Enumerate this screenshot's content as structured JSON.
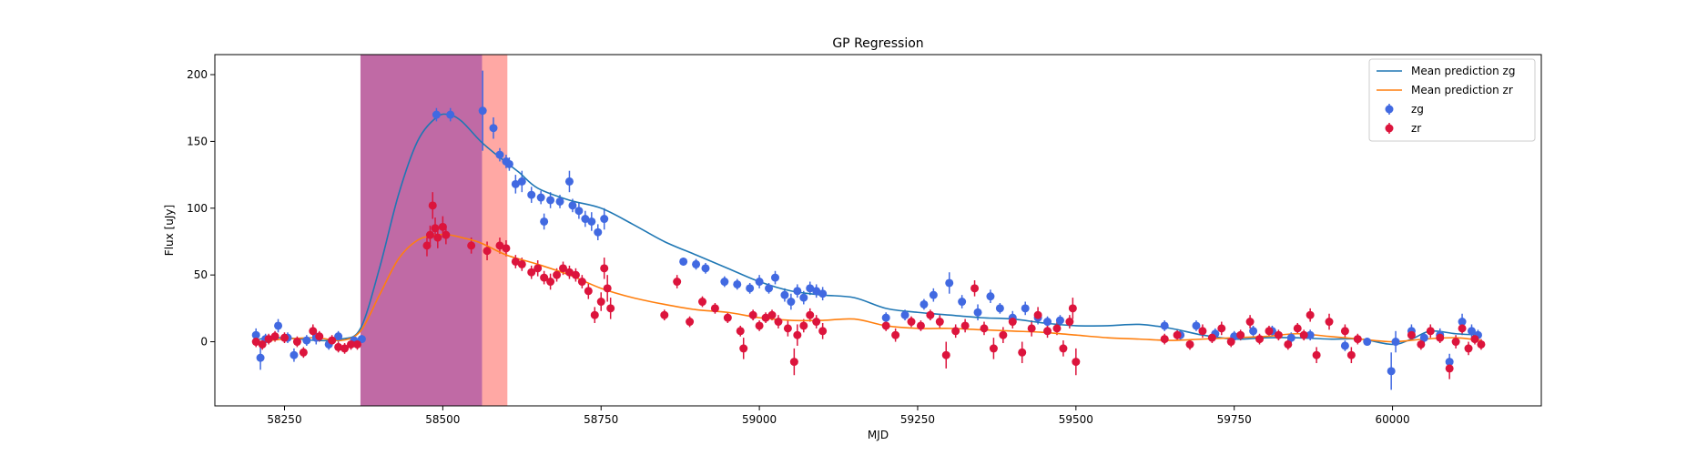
{
  "chart_data": {
    "type": "scatter",
    "title": "GP Regression",
    "xlabel": "MJD",
    "ylabel": "Flux [uJy]",
    "xlim": [
      58140,
      60235
    ],
    "ylim": [
      -48,
      215
    ],
    "xticks": [
      58250,
      58500,
      58750,
      59000,
      59250,
      59500,
      59750,
      60000
    ],
    "yticks": [
      0,
      50,
      100,
      150,
      200
    ],
    "grid": false,
    "legend_position": "top-right",
    "legend": [
      "Mean prediction zg",
      "Mean prediction zr",
      "zg",
      "zr"
    ],
    "colors": {
      "mean_zg": "#1f77b4",
      "mean_zr": "#ff7f0e",
      "zg": "#4169e1",
      "zr": "#dc143c",
      "span_purple": "#c06aa5",
      "span_salmon": "#ffa8a4"
    },
    "shaded_regions": [
      {
        "x_start": 58370,
        "x_end": 58562,
        "color": "#c06aa5"
      },
      {
        "x_start": 58562,
        "x_end": 58602,
        "color": "#ffa8a4"
      }
    ],
    "series": [
      {
        "name": "Mean prediction zg",
        "kind": "line",
        "x": [
          58210,
          58250,
          58300,
          58340,
          58370,
          58400,
          58430,
          58460,
          58490,
          58510,
          58530,
          58560,
          58590,
          58620,
          58650,
          58700,
          58750,
          58800,
          58850,
          58900,
          58950,
          59000,
          59050,
          59100,
          59150,
          59200,
          59250,
          59300,
          59350,
          59400,
          59450,
          59500,
          59550,
          59600,
          59650,
          59700,
          59750,
          59800,
          59850,
          59900,
          59950,
          60000,
          60030,
          60060,
          60100,
          60140
        ],
        "y": [
          2,
          3,
          1,
          2,
          10,
          55,
          110,
          150,
          168,
          170,
          165,
          150,
          138,
          127,
          115,
          106,
          100,
          88,
          75,
          65,
          55,
          45,
          38,
          35,
          33,
          25,
          22,
          20,
          18,
          17,
          14,
          12,
          12,
          13,
          10,
          5,
          2,
          3,
          3,
          2,
          2,
          -2,
          2,
          8,
          6,
          5
        ]
      },
      {
        "name": "Mean prediction zr",
        "kind": "line",
        "x": [
          58210,
          58250,
          58300,
          58340,
          58370,
          58400,
          58430,
          58460,
          58490,
          58510,
          58530,
          58560,
          58600,
          58650,
          58700,
          58750,
          58800,
          58850,
          58900,
          58950,
          59000,
          59050,
          59100,
          59150,
          59200,
          59250,
          59300,
          59350,
          59400,
          59450,
          59500,
          59550,
          59600,
          59650,
          59700,
          59750,
          59800,
          59850,
          59900,
          59950,
          60000,
          60050,
          60100,
          60140
        ],
        "y": [
          0,
          2,
          3,
          1,
          8,
          35,
          62,
          76,
          80,
          80,
          78,
          74,
          65,
          58,
          50,
          40,
          33,
          28,
          24,
          22,
          18,
          16,
          16,
          17,
          12,
          10,
          10,
          9,
          8,
          7,
          5,
          3,
          2,
          1,
          2,
          3,
          4,
          6,
          4,
          2,
          0,
          2,
          3,
          1
        ]
      },
      {
        "name": "zg",
        "kind": "errorbar",
        "points": [
          [
            58205,
            5,
            5
          ],
          [
            58212,
            -12,
            9
          ],
          [
            58220,
            2,
            4
          ],
          [
            58240,
            12,
            5
          ],
          [
            58255,
            3,
            4
          ],
          [
            58265,
            -10,
            5
          ],
          [
            58285,
            1,
            4
          ],
          [
            58300,
            3,
            5
          ],
          [
            58320,
            -2,
            4
          ],
          [
            58335,
            4,
            4
          ],
          [
            58360,
            1,
            3
          ],
          [
            58372,
            2,
            3
          ],
          [
            58490,
            170,
            5
          ],
          [
            58512,
            170,
            5
          ],
          [
            58563,
            173,
            30
          ],
          [
            58580,
            160,
            8
          ],
          [
            58590,
            140,
            5
          ],
          [
            58600,
            135,
            5
          ],
          [
            58605,
            133,
            5
          ],
          [
            58615,
            118,
            7
          ],
          [
            58625,
            120,
            8
          ],
          [
            58640,
            110,
            6
          ],
          [
            58655,
            108,
            5
          ],
          [
            58670,
            106,
            6
          ],
          [
            58685,
            105,
            5
          ],
          [
            58700,
            120,
            8
          ],
          [
            58705,
            102,
            5
          ],
          [
            58715,
            98,
            6
          ],
          [
            58725,
            92,
            6
          ],
          [
            58735,
            90,
            7
          ],
          [
            58745,
            82,
            6
          ],
          [
            58755,
            92,
            8
          ],
          [
            58660,
            90,
            6
          ],
          [
            58880,
            60,
            3
          ],
          [
            58900,
            58,
            4
          ],
          [
            58915,
            55,
            4
          ],
          [
            58945,
            45,
            4
          ],
          [
            58965,
            43,
            4
          ],
          [
            58985,
            40,
            4
          ],
          [
            59000,
            45,
            5
          ],
          [
            59015,
            40,
            4
          ],
          [
            59025,
            48,
            5
          ],
          [
            59040,
            35,
            5
          ],
          [
            59050,
            30,
            6
          ],
          [
            59060,
            38,
            5
          ],
          [
            59070,
            33,
            5
          ],
          [
            59080,
            40,
            5
          ],
          [
            59090,
            38,
            5
          ],
          [
            59100,
            36,
            5
          ],
          [
            59200,
            18,
            4
          ],
          [
            59230,
            20,
            4
          ],
          [
            59260,
            28,
            4
          ],
          [
            59275,
            35,
            5
          ],
          [
            59300,
            44,
            8
          ],
          [
            59320,
            30,
            5
          ],
          [
            59345,
            22,
            6
          ],
          [
            59365,
            34,
            5
          ],
          [
            59380,
            25,
            4
          ],
          [
            59400,
            18,
            5
          ],
          [
            59420,
            25,
            5
          ],
          [
            59440,
            18,
            5
          ],
          [
            59455,
            15,
            4
          ],
          [
            59475,
            16,
            4
          ],
          [
            59640,
            12,
            4
          ],
          [
            59665,
            5,
            4
          ],
          [
            59690,
            12,
            4
          ],
          [
            59720,
            6,
            4
          ],
          [
            59750,
            4,
            4
          ],
          [
            59780,
            8,
            4
          ],
          [
            59810,
            8,
            4
          ],
          [
            59840,
            3,
            4
          ],
          [
            59870,
            5,
            4
          ],
          [
            59925,
            -3,
            4
          ],
          [
            59960,
            0,
            3
          ],
          [
            59998,
            -22,
            14
          ],
          [
            60005,
            0,
            8
          ],
          [
            60030,
            8,
            5
          ],
          [
            60050,
            3,
            4
          ],
          [
            60075,
            5,
            5
          ],
          [
            60090,
            -15,
            6
          ],
          [
            60110,
            15,
            6
          ],
          [
            60125,
            8,
            5
          ],
          [
            60135,
            5,
            4
          ]
        ]
      },
      {
        "name": "zr",
        "kind": "errorbar",
        "points": [
          [
            58205,
            0,
            4
          ],
          [
            58215,
            -2,
            4
          ],
          [
            58225,
            2,
            4
          ],
          [
            58235,
            4,
            4
          ],
          [
            58250,
            3,
            4
          ],
          [
            58270,
            0,
            4
          ],
          [
            58280,
            -8,
            4
          ],
          [
            58295,
            8,
            5
          ],
          [
            58305,
            4,
            4
          ],
          [
            58325,
            1,
            4
          ],
          [
            58335,
            -4,
            4
          ],
          [
            58345,
            -5,
            4
          ],
          [
            58355,
            -2,
            4
          ],
          [
            58365,
            -2,
            4
          ],
          [
            58475,
            72,
            8
          ],
          [
            58480,
            80,
            7
          ],
          [
            58484,
            102,
            10
          ],
          [
            58488,
            85,
            8
          ],
          [
            58492,
            78,
            8
          ],
          [
            58500,
            86,
            8
          ],
          [
            58505,
            80,
            7
          ],
          [
            58545,
            72,
            6
          ],
          [
            58570,
            68,
            7
          ],
          [
            58590,
            72,
            6
          ],
          [
            58600,
            70,
            6
          ],
          [
            58615,
            60,
            5
          ],
          [
            58625,
            58,
            5
          ],
          [
            58640,
            52,
            5
          ],
          [
            58650,
            55,
            6
          ],
          [
            58660,
            48,
            5
          ],
          [
            58670,
            45,
            6
          ],
          [
            58680,
            50,
            5
          ],
          [
            58690,
            55,
            5
          ],
          [
            58700,
            52,
            5
          ],
          [
            58710,
            50,
            5
          ],
          [
            58720,
            45,
            5
          ],
          [
            58730,
            38,
            6
          ],
          [
            58740,
            20,
            6
          ],
          [
            58750,
            30,
            7
          ],
          [
            58755,
            55,
            8
          ],
          [
            58760,
            40,
            10
          ],
          [
            58765,
            25,
            8
          ],
          [
            58850,
            20,
            4
          ],
          [
            58870,
            45,
            5
          ],
          [
            58890,
            15,
            4
          ],
          [
            58910,
            30,
            4
          ],
          [
            58930,
            25,
            4
          ],
          [
            58950,
            18,
            4
          ],
          [
            58970,
            8,
            4
          ],
          [
            58975,
            -5,
            8
          ],
          [
            58990,
            20,
            4
          ],
          [
            59000,
            12,
            4
          ],
          [
            59010,
            18,
            4
          ],
          [
            59020,
            20,
            4
          ],
          [
            59030,
            15,
            5
          ],
          [
            59045,
            10,
            6
          ],
          [
            59055,
            -15,
            10
          ],
          [
            59060,
            5,
            8
          ],
          [
            59070,
            12,
            5
          ],
          [
            59080,
            20,
            5
          ],
          [
            59090,
            15,
            5
          ],
          [
            59100,
            8,
            6
          ],
          [
            59200,
            12,
            4
          ],
          [
            59215,
            5,
            5
          ],
          [
            59240,
            15,
            4
          ],
          [
            59255,
            12,
            4
          ],
          [
            59270,
            20,
            4
          ],
          [
            59285,
            15,
            5
          ],
          [
            59295,
            -10,
            10
          ],
          [
            59310,
            8,
            5
          ],
          [
            59325,
            12,
            5
          ],
          [
            59340,
            40,
            6
          ],
          [
            59355,
            10,
            5
          ],
          [
            59370,
            -5,
            8
          ],
          [
            59385,
            5,
            6
          ],
          [
            59400,
            15,
            5
          ],
          [
            59415,
            -8,
            8
          ],
          [
            59430,
            10,
            6
          ],
          [
            59440,
            20,
            6
          ],
          [
            59455,
            8,
            5
          ],
          [
            59470,
            10,
            5
          ],
          [
            59480,
            -5,
            6
          ],
          [
            59490,
            15,
            5
          ],
          [
            59495,
            25,
            8
          ],
          [
            59500,
            -15,
            10
          ],
          [
            59640,
            2,
            4
          ],
          [
            59660,
            5,
            4
          ],
          [
            59680,
            -2,
            4
          ],
          [
            59700,
            8,
            5
          ],
          [
            59715,
            3,
            4
          ],
          [
            59730,
            10,
            5
          ],
          [
            59745,
            0,
            4
          ],
          [
            59760,
            5,
            4
          ],
          [
            59775,
            15,
            5
          ],
          [
            59790,
            2,
            4
          ],
          [
            59805,
            8,
            4
          ],
          [
            59820,
            5,
            4
          ],
          [
            59835,
            -2,
            4
          ],
          [
            59850,
            10,
            4
          ],
          [
            59860,
            5,
            4
          ],
          [
            59870,
            20,
            5
          ],
          [
            59880,
            -10,
            6
          ],
          [
            59900,
            15,
            6
          ],
          [
            59925,
            8,
            5
          ],
          [
            59935,
            -10,
            6
          ],
          [
            59945,
            2,
            4
          ],
          [
            60030,
            5,
            4
          ],
          [
            60045,
            -2,
            4
          ],
          [
            60060,
            8,
            5
          ],
          [
            60075,
            3,
            4
          ],
          [
            60090,
            -20,
            8
          ],
          [
            60100,
            0,
            5
          ],
          [
            60110,
            10,
            5
          ],
          [
            60120,
            -5,
            5
          ],
          [
            60130,
            2,
            4
          ],
          [
            60140,
            -2,
            4
          ]
        ]
      }
    ]
  }
}
